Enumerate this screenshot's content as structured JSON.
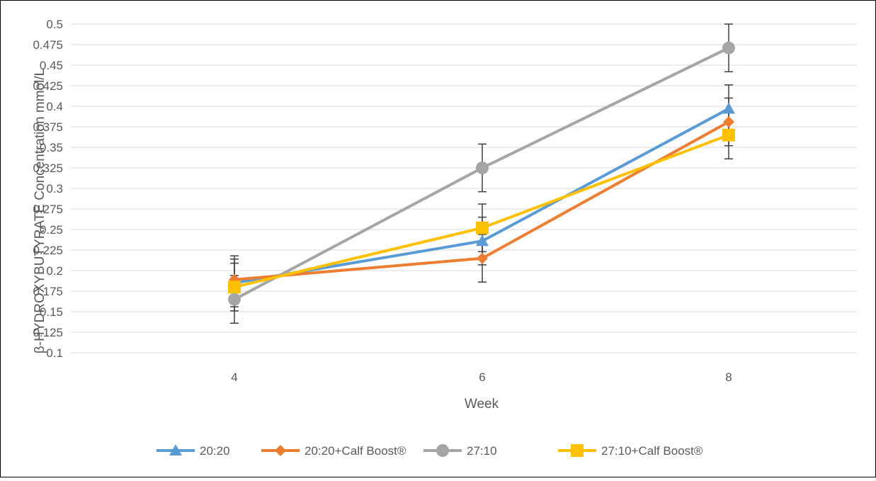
{
  "chart_data": {
    "type": "line",
    "title": "",
    "xlabel": "Week",
    "ylabel": "β-HYDROXYBUTYRATE Concentration mmol/L",
    "x": [
      "4",
      "6",
      "8"
    ],
    "ylim": [
      0.1,
      0.5
    ],
    "yticks": [
      "0.1",
      "0.125",
      "0.15",
      "0.175",
      "0.2",
      "0.225",
      "0.25",
      "0.275",
      "0.3",
      "0.325",
      "0.35",
      "0.375",
      "0.4",
      "0.425",
      "0.45",
      "0.475",
      "0.5"
    ],
    "grid": "horizontal",
    "legend_position": "bottom",
    "error_bars": true,
    "series": [
      {
        "name": "20:20",
        "marker": "triangle",
        "color": "#5B9BD5",
        "values": [
          0.185,
          0.236,
          0.397
        ],
        "errors": [
          0.029,
          0.029,
          0.029
        ]
      },
      {
        "name": "20:20+Calf Boost®",
        "marker": "diamond",
        "color": "#ED7D31",
        "values": [
          0.189,
          0.215,
          0.381
        ],
        "errors": [
          0.029,
          0.029,
          0.029
        ]
      },
      {
        "name": "27:10",
        "marker": "circle",
        "color": "#A5A5A5",
        "values": [
          0.165,
          0.325,
          0.471
        ],
        "errors": [
          0.029,
          0.029,
          0.029
        ]
      },
      {
        "name": "27:10+Calf Boost®",
        "marker": "square",
        "color": "#FFC000",
        "values": [
          0.18,
          0.252,
          0.365
        ],
        "errors": [
          0.029,
          0.029,
          0.029
        ]
      }
    ]
  }
}
